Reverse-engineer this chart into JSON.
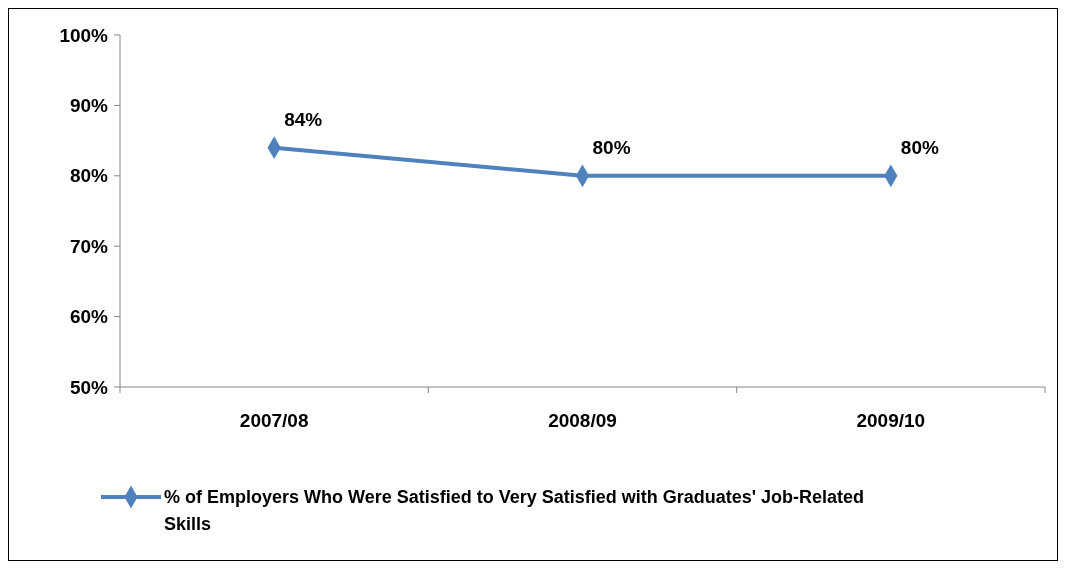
{
  "chart_data": {
    "type": "line",
    "categories": [
      "2007/08",
      "2008/09",
      "2009/10"
    ],
    "series": [
      {
        "name": "% of Employers Who Were Satisfied to Very Satisfied  with Graduates' Job-Related Skills",
        "color": "#4f81bd",
        "values": [
          84,
          80,
          80
        ],
        "value_labels": [
          "84%",
          "80%",
          "80%"
        ]
      }
    ],
    "ylim": [
      50,
      100
    ],
    "yticks": [
      {
        "value": 50,
        "label": "50%"
      },
      {
        "value": 60,
        "label": "60%"
      },
      {
        "value": 70,
        "label": "70%"
      },
      {
        "value": 80,
        "label": "80%"
      },
      {
        "value": 90,
        "label": "90%"
      },
      {
        "value": 100,
        "label": "100%"
      }
    ],
    "marker": "diamond",
    "legend": "bottom",
    "grid": false
  }
}
